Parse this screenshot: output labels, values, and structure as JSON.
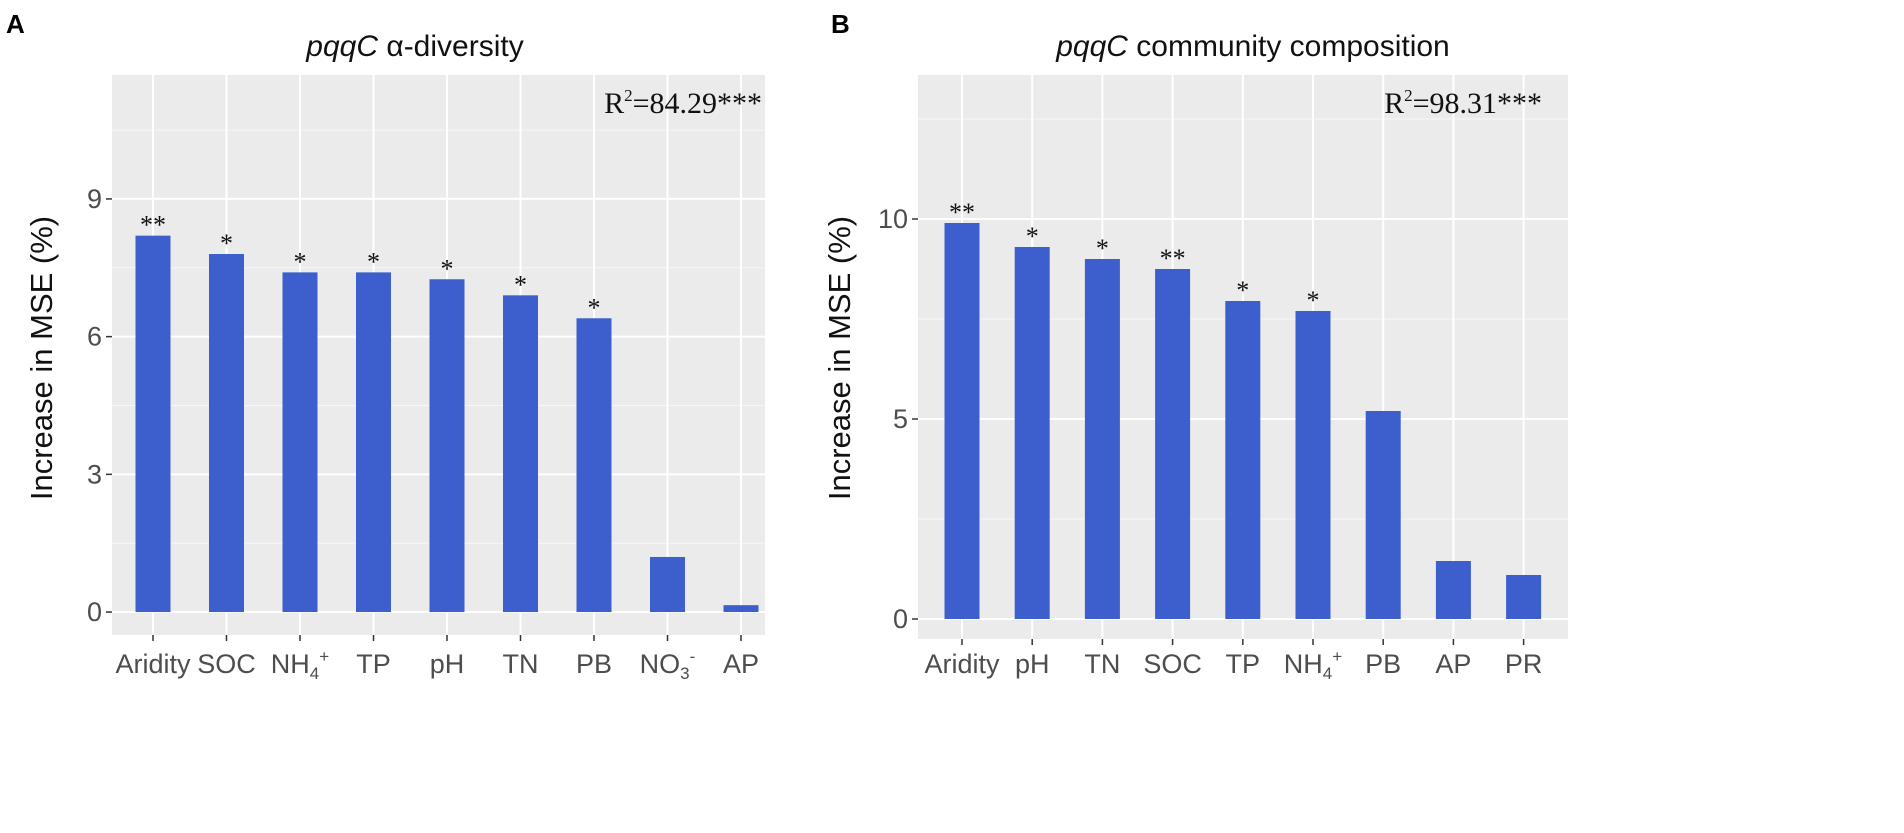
{
  "chart_data": [
    {
      "panel": "A",
      "type": "bar",
      "title_italic": "pqqC",
      "title_rest": "α-diversity",
      "ylabel": "Increase in MSE (%)",
      "xlabel": "",
      "categories": [
        {
          "main": "Aridity",
          "sub": "",
          "sup": ""
        },
        {
          "main": "SOC",
          "sub": "",
          "sup": ""
        },
        {
          "main": "NH",
          "sub": "4",
          "sup": "+"
        },
        {
          "main": "TP",
          "sub": "",
          "sup": ""
        },
        {
          "main": "pH",
          "sub": "",
          "sup": ""
        },
        {
          "main": "TN",
          "sub": "",
          "sup": ""
        },
        {
          "main": "PB",
          "sub": "",
          "sup": ""
        },
        {
          "main": "NO",
          "sub": "3",
          "sup": "-"
        },
        {
          "main": "AP",
          "sub": "",
          "sup": ""
        }
      ],
      "values": [
        8.2,
        7.8,
        7.4,
        7.4,
        7.25,
        6.9,
        6.4,
        1.2,
        0.15
      ],
      "significance": [
        "**",
        "*",
        "*",
        "*",
        "*",
        "*",
        "*",
        "",
        ""
      ],
      "ylim": [
        -0.5,
        11.7
      ],
      "yticks": [
        0,
        3,
        6,
        9
      ],
      "ytick_labels": [
        "0",
        "3",
        "6",
        "9"
      ],
      "stat_prefix": "R",
      "stat_sup": "2",
      "stat_value": "=84.29***",
      "bar_color": "#3c5fcd",
      "panel_bg": "#ebebeb"
    },
    {
      "panel": "B",
      "type": "bar",
      "title_italic": "pqqC",
      "title_rest": "community composition",
      "ylabel": "Increase in MSE (%)",
      "xlabel": "",
      "categories": [
        {
          "main": "Aridity",
          "sub": "",
          "sup": ""
        },
        {
          "main": "pH",
          "sub": "",
          "sup": ""
        },
        {
          "main": "TN",
          "sub": "",
          "sup": ""
        },
        {
          "main": "SOC",
          "sub": "",
          "sup": ""
        },
        {
          "main": "TP",
          "sub": "",
          "sup": ""
        },
        {
          "main": "NH",
          "sub": "4",
          "sup": "+"
        },
        {
          "main": "PB",
          "sub": "",
          "sup": ""
        },
        {
          "main": "AP",
          "sub": "",
          "sup": ""
        },
        {
          "main": "PR",
          "sub": "",
          "sup": ""
        }
      ],
      "values": [
        9.9,
        9.3,
        9.0,
        8.75,
        7.95,
        7.7,
        5.2,
        1.45,
        1.1
      ],
      "significance": [
        "**",
        "*",
        "*",
        "**",
        "*",
        "*",
        "",
        "",
        ""
      ],
      "ylim": [
        -0.5,
        13.6
      ],
      "yticks": [
        0,
        5,
        10
      ],
      "ytick_labels": [
        "0",
        "5",
        "10"
      ],
      "stat_prefix": "R",
      "stat_sup": "2",
      "stat_value": "=98.31***",
      "bar_color": "#3c5fcd",
      "panel_bg": "#ebebeb"
    }
  ]
}
